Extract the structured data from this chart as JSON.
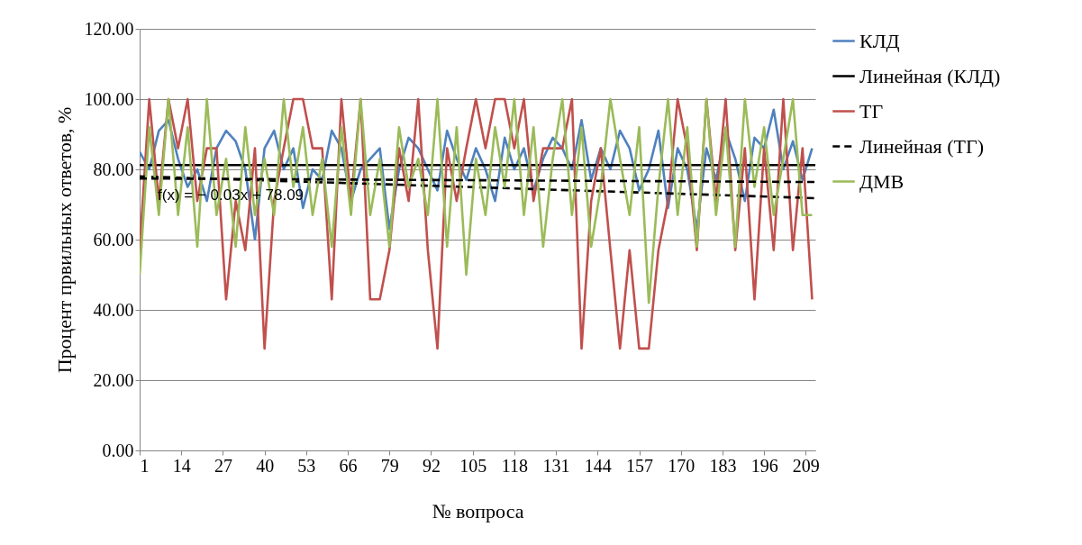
{
  "chart_data": {
    "type": "line",
    "xlabel": "№ вопроса",
    "ylabel": "Процент првильных ответов, %",
    "annotations": [
      "f(x) = − 0.03x + 78.09"
    ],
    "xlim": [
      1,
      212
    ],
    "xticks": [
      1,
      14,
      27,
      40,
      53,
      66,
      79,
      92,
      105,
      118,
      131,
      144,
      157,
      170,
      183,
      196,
      209
    ],
    "ylim": [
      0,
      120
    ],
    "yticks": [
      {
        "value": 0,
        "label": "0.00"
      },
      {
        "value": 20,
        "label": "20.00"
      },
      {
        "value": 40,
        "label": "40.00"
      },
      {
        "value": 60,
        "label": "60.00"
      },
      {
        "value": 80,
        "label": "80.00"
      },
      {
        "value": 100,
        "label": "100.00"
      },
      {
        "value": 120,
        "label": "120.00"
      }
    ],
    "grid": "y",
    "legend": "right",
    "marker": "none",
    "series": [
      {
        "name": "КЛД",
        "color": "#4f81bd",
        "line_style": "solid",
        "x": [
          1,
          4,
          7,
          10,
          13,
          16,
          19,
          22,
          25,
          28,
          31,
          34,
          37,
          40,
          43,
          46,
          49,
          52,
          55,
          58,
          61,
          64,
          67,
          70,
          73,
          76,
          79,
          82,
          85,
          88,
          91,
          94,
          97,
          100,
          103,
          106,
          109,
          112,
          115,
          118,
          121,
          124,
          127,
          130,
          133,
          136,
          139,
          142,
          145,
          148,
          151,
          154,
          157,
          160,
          163,
          166,
          169,
          172,
          175,
          178,
          181,
          184,
          187,
          190,
          193,
          196,
          199,
          202,
          205,
          208,
          211
        ],
        "values": [
          85,
          80,
          91,
          94,
          83,
          75,
          80,
          71,
          86,
          91,
          88,
          80,
          60,
          86,
          91,
          80,
          86,
          69,
          80,
          77,
          91,
          86,
          71,
          80,
          83,
          86,
          63,
          80,
          89,
          86,
          80,
          74,
          91,
          83,
          77,
          86,
          80,
          71,
          89,
          80,
          86,
          74,
          83,
          89,
          86,
          80,
          94,
          77,
          86,
          80,
          91,
          86,
          74,
          80,
          91,
          69,
          86,
          80,
          63,
          86,
          77,
          91,
          83,
          71,
          89,
          86,
          97,
          80,
          88,
          77,
          86
        ]
      },
      {
        "name": "Линейная (КЛД)",
        "color": "#000000",
        "line_style": "solid",
        "x": [
          1,
          212
        ],
        "values": [
          81.2,
          81.2
        ]
      },
      {
        "name": "ТГ",
        "color": "#c0504d",
        "line_style": "solid",
        "x": [
          1,
          4,
          7,
          10,
          13,
          16,
          19,
          22,
          25,
          28,
          31,
          34,
          37,
          40,
          43,
          46,
          49,
          52,
          55,
          58,
          61,
          64,
          67,
          70,
          73,
          76,
          79,
          82,
          85,
          88,
          91,
          94,
          97,
          100,
          103,
          106,
          109,
          112,
          115,
          118,
          121,
          124,
          127,
          130,
          133,
          136,
          139,
          142,
          145,
          148,
          151,
          154,
          157,
          160,
          163,
          166,
          169,
          172,
          175,
          178,
          181,
          184,
          187,
          190,
          193,
          196,
          199,
          202,
          205,
          208,
          211
        ],
        "values": [
          57,
          100,
          71,
          100,
          86,
          100,
          71,
          86,
          86,
          43,
          71,
          57,
          86,
          29,
          71,
          86,
          100,
          100,
          86,
          86,
          43,
          100,
          71,
          100,
          43,
          43,
          57,
          86,
          71,
          100,
          57,
          29,
          86,
          71,
          86,
          100,
          86,
          100,
          100,
          86,
          100,
          71,
          86,
          86,
          86,
          100,
          29,
          71,
          86,
          57,
          29,
          57,
          29,
          29,
          57,
          71,
          100,
          86,
          57,
          100,
          71,
          100,
          57,
          86,
          43,
          86,
          57,
          100,
          57,
          86,
          43
        ]
      },
      {
        "name": "Линейная (ТГ)",
        "color": "#000000",
        "line_style": "dashed",
        "x": [
          1,
          212
        ],
        "values": [
          78.0,
          71.8
        ]
      },
      {
        "name": "ДМВ",
        "color": "#9bbb59",
        "line_style": "solid",
        "x": [
          1,
          4,
          7,
          10,
          13,
          16,
          19,
          22,
          25,
          28,
          31,
          34,
          37,
          40,
          43,
          46,
          49,
          52,
          55,
          58,
          61,
          64,
          67,
          70,
          73,
          76,
          79,
          82,
          85,
          88,
          91,
          94,
          97,
          100,
          103,
          106,
          109,
          112,
          115,
          118,
          121,
          124,
          127,
          130,
          133,
          136,
          139,
          142,
          145,
          148,
          151,
          154,
          157,
          160,
          163,
          166,
          169,
          172,
          175,
          178,
          181,
          184,
          187,
          190,
          193,
          196,
          199,
          202,
          205,
          208,
          211
        ],
        "values": [
          50,
          92,
          67,
          100,
          67,
          92,
          58,
          100,
          67,
          83,
          58,
          92,
          67,
          83,
          67,
          100,
          75,
          92,
          67,
          83,
          58,
          92,
          67,
          100,
          67,
          83,
          58,
          92,
          75,
          83,
          67,
          100,
          58,
          92,
          50,
          83,
          67,
          92,
          75,
          100,
          67,
          92,
          58,
          83,
          100,
          67,
          92,
          58,
          75,
          100,
          83,
          67,
          92,
          42,
          75,
          100,
          67,
          92,
          58,
          100,
          67,
          92,
          58,
          100,
          75,
          92,
          67,
          83,
          100,
          67,
          67
        ]
      },
      {
        "color": "#000000",
        "line_style": "dashed",
        "x": [
          1,
          212
        ],
        "values": [
          77.4,
          76.4
        ]
      }
    ]
  }
}
